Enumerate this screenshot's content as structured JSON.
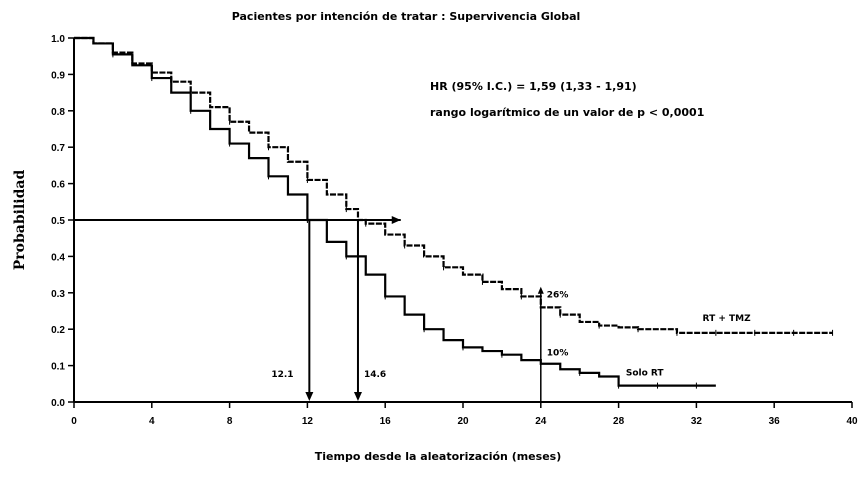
{
  "chart_data": {
    "type": "line",
    "title": "Pacientes por intención de tratar : Supervivencia Global",
    "xlabel": "Tiempo desde la aleatorización (meses)",
    "ylabel": "Probabilidad",
    "xlim": [
      0,
      40
    ],
    "ylim": [
      0,
      1.0
    ],
    "x_ticks": [
      "0",
      "4",
      "8",
      "12",
      "16",
      "20",
      "24",
      "28",
      "32",
      "36",
      "40"
    ],
    "y_ticks": [
      "0.0",
      "0.1",
      "0.2",
      "0.3",
      "0.4",
      "0.5",
      "0.6",
      "0.7",
      "0.8",
      "0.9",
      "1.0"
    ],
    "grid": false,
    "series": [
      {
        "name": "RT + TMZ",
        "x": [
          0,
          1,
          2,
          3,
          4,
          5,
          6,
          7,
          8,
          9,
          10,
          11,
          12,
          13,
          14,
          14.6,
          15,
          16,
          17,
          18,
          19,
          20,
          21,
          22,
          23,
          24,
          25,
          26,
          27,
          28,
          29,
          30,
          31,
          32,
          33,
          34,
          35,
          36,
          37,
          38,
          39
        ],
        "y": [
          1.0,
          0.985,
          0.96,
          0.93,
          0.905,
          0.88,
          0.85,
          0.81,
          0.77,
          0.74,
          0.7,
          0.66,
          0.61,
          0.57,
          0.53,
          0.5,
          0.49,
          0.46,
          0.43,
          0.4,
          0.37,
          0.35,
          0.33,
          0.31,
          0.29,
          0.26,
          0.24,
          0.22,
          0.21,
          0.205,
          0.2,
          0.2,
          0.19,
          0.19,
          0.19,
          0.19,
          0.19,
          0.19,
          0.19,
          0.19,
          0.19
        ]
      },
      {
        "name": "Solo RT",
        "x": [
          0,
          1,
          2,
          3,
          4,
          5,
          6,
          7,
          8,
          9,
          10,
          11,
          12,
          13,
          14,
          15,
          16,
          17,
          18,
          19,
          20,
          21,
          22,
          23,
          24,
          25,
          26,
          27,
          28,
          29,
          30,
          31,
          32,
          33
        ],
        "y": [
          1.0,
          0.985,
          0.955,
          0.925,
          0.89,
          0.85,
          0.8,
          0.75,
          0.71,
          0.67,
          0.62,
          0.57,
          0.5,
          0.44,
          0.4,
          0.35,
          0.29,
          0.24,
          0.2,
          0.17,
          0.15,
          0.14,
          0.13,
          0.115,
          0.105,
          0.09,
          0.08,
          0.07,
          0.045,
          0.045,
          0.045,
          0.045,
          0.045,
          0.045
        ]
      }
    ],
    "annotations": {
      "hr_text": "HR (95% I.C.) = 1,59 (1,33 - 1,91)",
      "p_text": "rango logarítmico de un valor de p < 0,0001",
      "median_solo_label": "12.1",
      "median_solo_x": 12.1,
      "median_tmz_label": "14.6",
      "median_tmz_x": 14.6,
      "median_y": 0.5,
      "arrow_end_x": 16.8,
      "month24_x": 24,
      "pct_tmz": "26%",
      "pct_tmz_y": 0.26,
      "pct_solo": "10%",
      "pct_solo_y": 0.1
    }
  }
}
